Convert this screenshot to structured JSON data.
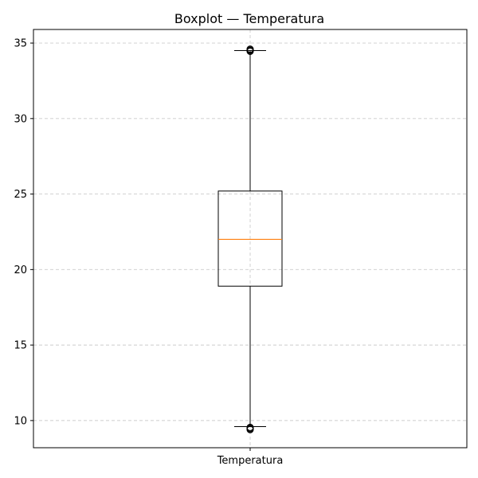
{
  "chart_data": {
    "type": "boxplot",
    "title": "Boxplot — Temperatura",
    "xlabel": "",
    "ylabel": "",
    "categories": [
      "Temperatura"
    ],
    "boxes": [
      {
        "category": "Temperatura",
        "whisker_low": 9.6,
        "q1": 18.9,
        "median": 22.0,
        "q3": 25.2,
        "whisker_high": 34.5,
        "outliers": [
          9.4,
          9.45,
          9.5,
          9.55,
          34.45,
          34.5,
          34.55,
          34.6
        ]
      }
    ],
    "ylim": [
      8.2,
      35.9
    ],
    "yticks": [
      10,
      15,
      20,
      25,
      30,
      35
    ],
    "grid": true,
    "grid_style": "dashed",
    "colors": {
      "box": "#000000",
      "median": "#ff7f0e",
      "grid": "#cccccc",
      "outlier": "#000000"
    }
  }
}
